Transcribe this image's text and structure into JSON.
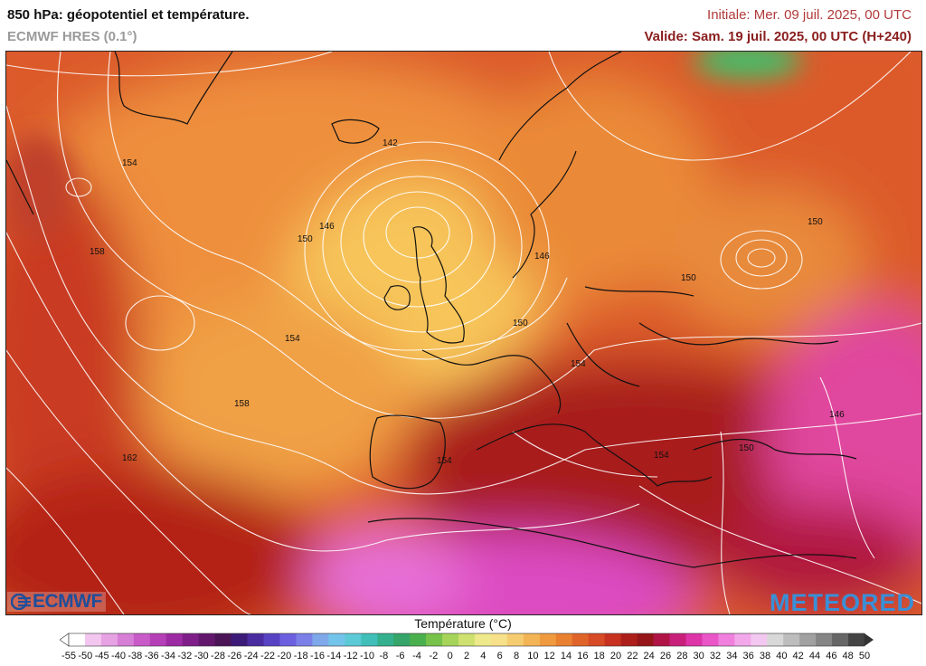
{
  "header": {
    "title": "850 hPa: géopotentiel et température.",
    "model": "ECMWF HRES (0.1°)",
    "init": "Initiale: Mer. 09 juil. 2025, 00 UTC",
    "valid": "Valide: Sam. 19 juil. 2025, 00 UTC (H+240)"
  },
  "logos": {
    "left": "ECMWF",
    "right": "METEORED"
  },
  "contour_labels": [
    "142",
    "146",
    "150",
    "154",
    "158",
    "162",
    "154",
    "158",
    "154",
    "150",
    "146",
    "150",
    "154",
    "154",
    "150",
    "150",
    "146",
    "154"
  ],
  "legend": {
    "title": "Température (°C)",
    "ticks": [
      "-55",
      "-50",
      "-45",
      "-40",
      "-38",
      "-36",
      "-34",
      "-32",
      "-30",
      "-28",
      "-26",
      "-24",
      "-22",
      "-20",
      "-18",
      "-16",
      "-14",
      "-12",
      "-10",
      "-8",
      "-6",
      "-4",
      "-2",
      "0",
      "2",
      "4",
      "6",
      "8",
      "10",
      "12",
      "14",
      "16",
      "18",
      "20",
      "22",
      "24",
      "26",
      "28",
      "30",
      "32",
      "34",
      "36",
      "38",
      "40",
      "42",
      "44",
      "46",
      "48",
      "50"
    ],
    "colors": [
      "#ffffff",
      "#f3c6f0",
      "#e7a2e4",
      "#d77ed6",
      "#c85bc8",
      "#b53fb6",
      "#9c2aa2",
      "#7f1e88",
      "#62176d",
      "#4b1456",
      "#3b1a78",
      "#4a2ba0",
      "#5842c4",
      "#6c5fe0",
      "#7b7fe8",
      "#7fa8ea",
      "#73c4ea",
      "#5cc9d6",
      "#3fbfb8",
      "#34b08e",
      "#35a56a",
      "#4ab04e",
      "#77c24a",
      "#a6d45a",
      "#cde070",
      "#eee98a",
      "#f7e08a",
      "#f6cc70",
      "#f3b455",
      "#ef9a3f",
      "#e98030",
      "#e0642a",
      "#d64a25",
      "#c6321f",
      "#ad1f1a",
      "#951518",
      "#b01446",
      "#c8207a",
      "#dd34a8",
      "#ea55c8",
      "#f07fde",
      "#f2a8ea",
      "#f3c8f0",
      "#d8d8d8",
      "#bdbdbd",
      "#a0a0a0",
      "#858585",
      "#666666",
      "#444444"
    ]
  }
}
